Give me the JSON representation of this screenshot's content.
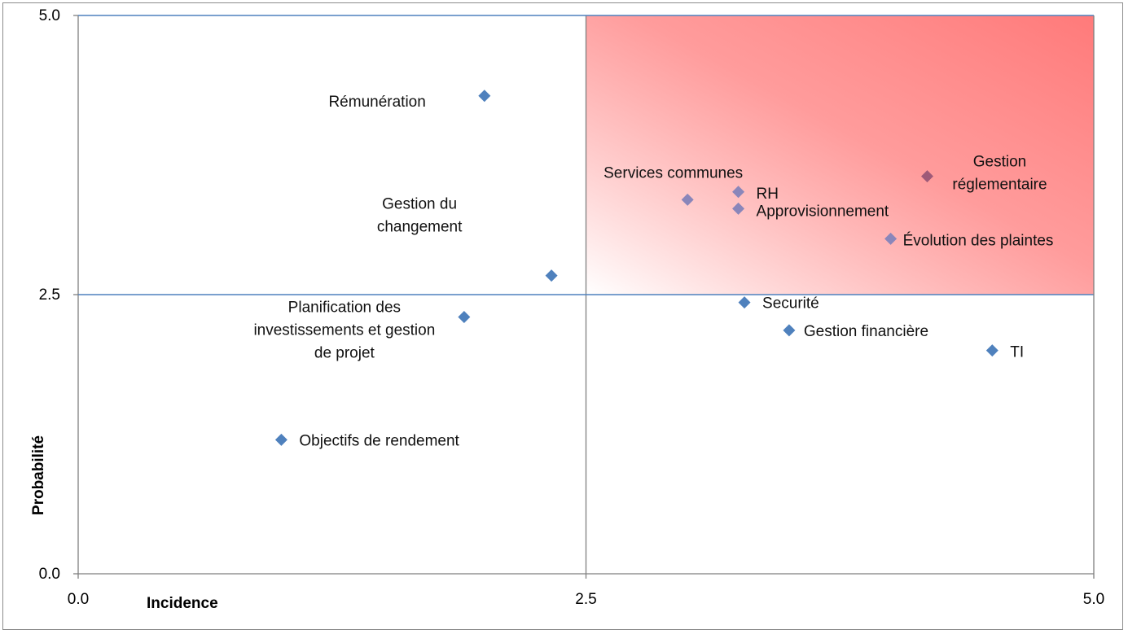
{
  "chart_data": {
    "type": "scatter",
    "title": "",
    "xlabel": "Incidence",
    "ylabel": "Probabilité",
    "xlim": [
      0,
      5
    ],
    "ylim": [
      0,
      5
    ],
    "x_ticks": [
      "0.0",
      "2.5",
      "5.0"
    ],
    "y_ticks": [
      "0.0",
      "2.5",
      "5.0"
    ],
    "grid": false,
    "quadrant_lines": {
      "x": 2.5,
      "y": 2.5
    },
    "highlight_region": {
      "x_from": 2.5,
      "x_to": 5,
      "y_from": 2.5,
      "y_to": 5,
      "color": "#ff7a7a"
    },
    "marker_color": "#4f81bd",
    "highlight_label_color": "#c00000",
    "points": [
      {
        "label": "Rémunération",
        "x": 2.0,
        "y": 4.28
      },
      {
        "label": "Gestion du changement",
        "x": 2.33,
        "y": 2.67
      },
      {
        "label": "Planification des investissements et gestion de projet",
        "x": 1.9,
        "y": 2.3
      },
      {
        "label": "Objectifs de rendement",
        "x": 1.0,
        "y": 1.2
      },
      {
        "label": "Services communes",
        "x": 3.0,
        "y": 3.35
      },
      {
        "label": "RH",
        "x": 3.25,
        "y": 3.42
      },
      {
        "label": "Approvisionnement",
        "x": 3.25,
        "y": 3.27
      },
      {
        "label": "Gestion réglementaire",
        "x": 4.18,
        "y": 3.56,
        "highlight": true
      },
      {
        "label": "Évolution des plaintes",
        "x": 4.0,
        "y": 3.0
      },
      {
        "label": "Securité",
        "x": 3.28,
        "y": 2.43
      },
      {
        "label": "Gestion financière",
        "x": 3.5,
        "y": 2.18
      },
      {
        "label": "TI",
        "x": 4.5,
        "y": 2.0
      }
    ]
  }
}
